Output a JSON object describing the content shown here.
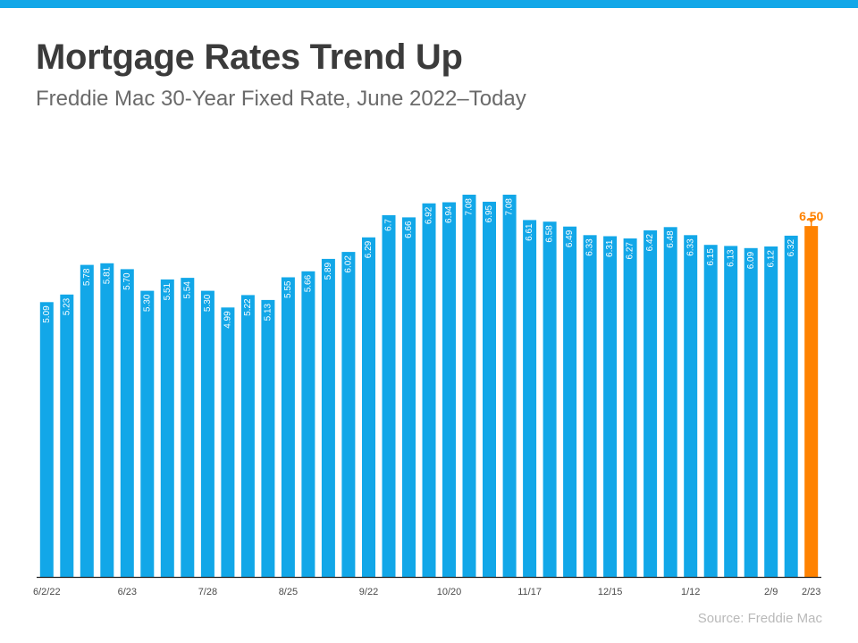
{
  "header": {
    "title": "Mortgage Rates Trend Up",
    "subtitle": "Freddie Mac 30-Year Fixed Rate, June 2022–Today"
  },
  "footer": {
    "source": "Source: Freddie Mac"
  },
  "colors": {
    "bar": "#12a7e8",
    "highlight": "#ff8200",
    "accent_bar": "#12a7e8"
  },
  "chart_data": {
    "type": "bar",
    "title": "Mortgage Rates Trend Up",
    "subtitle": "Freddie Mac 30-Year Fixed Rate, June 2022–Today",
    "values": [
      5.09,
      5.23,
      5.78,
      5.81,
      5.7,
      5.3,
      5.51,
      5.54,
      5.3,
      4.99,
      5.22,
      5.13,
      5.55,
      5.66,
      5.89,
      6.02,
      6.29,
      6.7,
      6.66,
      6.92,
      6.94,
      7.08,
      6.95,
      7.08,
      6.61,
      6.58,
      6.49,
      6.33,
      6.31,
      6.27,
      6.42,
      6.48,
      6.33,
      6.15,
      6.13,
      6.09,
      6.12,
      6.32,
      6.5
    ],
    "value_labels": [
      "5.09",
      "5.23",
      "5.78",
      "5.81",
      "5.70",
      "5.30",
      "5.51",
      "5.54",
      "5.30",
      "4.99",
      "5.22",
      "5.13",
      "5.55",
      "5.66",
      "5.89",
      "6.02",
      "6.29",
      "6.7",
      "6.66",
      "6.92",
      "6.94",
      "7.08",
      "6.95",
      "7.08",
      "6.61",
      "6.58",
      "6.49",
      "6.33",
      "6.31",
      "6.27",
      "6.42",
      "6.48",
      "6.33",
      "6.15",
      "6.13",
      "6.09",
      "6.12",
      "6.32",
      "6.50"
    ],
    "x_ticks": [
      {
        "index": 0,
        "label": "6/2/22"
      },
      {
        "index": 4,
        "label": "6/23"
      },
      {
        "index": 8,
        "label": "7/28"
      },
      {
        "index": 12,
        "label": "8/25"
      },
      {
        "index": 16,
        "label": "9/22"
      },
      {
        "index": 20,
        "label": "10/20"
      },
      {
        "index": 24,
        "label": "11/17"
      },
      {
        "index": 28,
        "label": "12/15"
      },
      {
        "index": 32,
        "label": "1/12"
      },
      {
        "index": 36,
        "label": "2/9"
      },
      {
        "index": 38,
        "label": "2/23"
      }
    ],
    "highlight": {
      "index": 38,
      "label": "6.50"
    },
    "ylim": [
      0,
      7.5
    ],
    "xlabel": "",
    "ylabel": "",
    "grid": false,
    "legend": "none"
  }
}
